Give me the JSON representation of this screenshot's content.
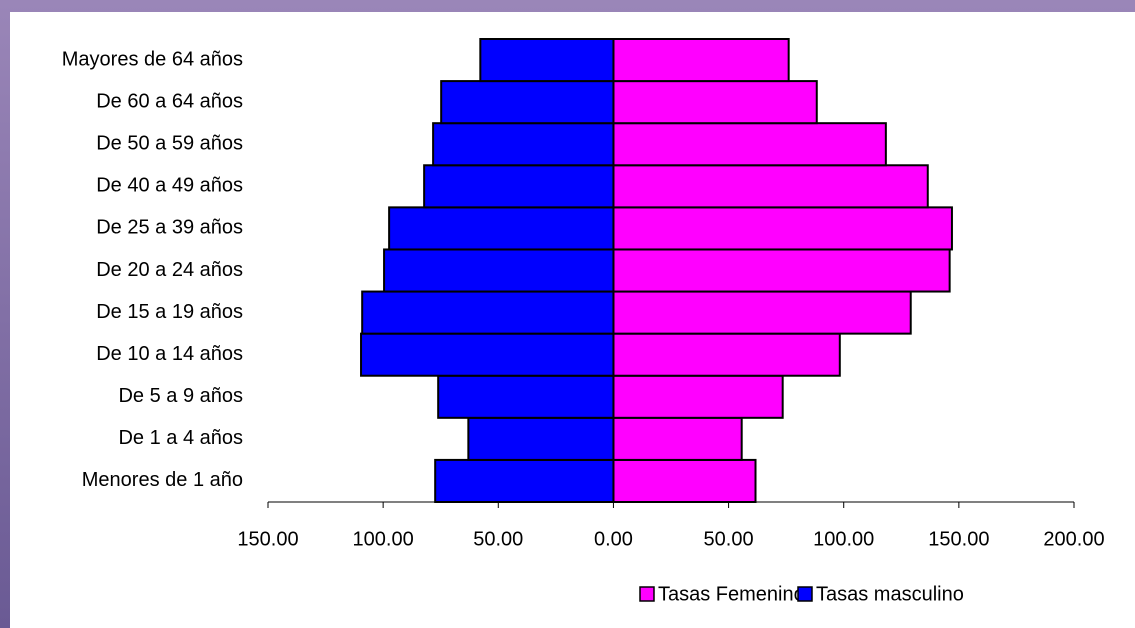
{
  "chart_data": {
    "type": "pyramid",
    "categories": [
      "Menores de 1 año",
      "De 1 a 4 años",
      "De 5 a 9 años",
      "De 10 a 14 años",
      "De 15 a 19 años",
      "De 20 a 24 años",
      "De 25 a 39 años",
      "De 40 a 49 años",
      "De 50 a 59 años",
      "De 60 a 64 años",
      "Mayores de 64 años"
    ],
    "series": [
      {
        "name": "Tasas Femenino",
        "color": "#ff00ff",
        "values": [
          61.7,
          55.7,
          73.5,
          98.3,
          129.1,
          146,
          147,
          136.5,
          118.3,
          88.3,
          76.1
        ]
      },
      {
        "name": "Tasas masculino",
        "color": "#0000ff",
        "values": [
          -77.4,
          -63,
          -76.1,
          -109.6,
          -109.1,
          -99.6,
          -97.4,
          -82.2,
          -78.3,
          -74.8,
          -57.8
        ]
      }
    ],
    "xlim": [
      -150,
      200
    ],
    "xticks": [
      {
        "value": -150,
        "label": "150.00"
      },
      {
        "value": -100,
        "label": "100.00"
      },
      {
        "value": -50,
        "label": "50.00"
      },
      {
        "value": 0,
        "label": "0.00"
      },
      {
        "value": 50,
        "label": "50.00"
      },
      {
        "value": 100,
        "label": "100.00"
      },
      {
        "value": 150,
        "label": "150.00"
      },
      {
        "value": 200,
        "label": "200.00"
      }
    ],
    "legend": "bottom"
  }
}
